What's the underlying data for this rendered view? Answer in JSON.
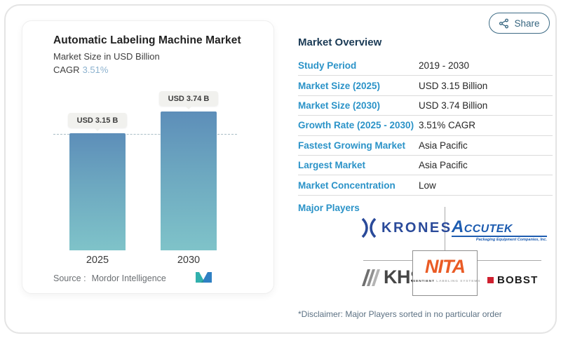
{
  "share": {
    "label": "Share"
  },
  "chart_card": {
    "title": "Automatic Labeling Machine Market",
    "subtitle": "Market Size in USD Billion",
    "cagr_label": "CAGR",
    "cagr_value": "3.51%",
    "source_label": "Source :",
    "source_value": "Mordor Intelligence"
  },
  "chart_data": {
    "type": "bar",
    "title": "Automatic Labeling Machine Market",
    "ylabel": "Market Size in USD Billion",
    "categories": [
      "2025",
      "2030"
    ],
    "values": [
      3.15,
      3.74
    ],
    "bar_labels": [
      "USD 3.15 B",
      "USD 3.74 B"
    ],
    "ylim": [
      0,
      4.2
    ],
    "reference_line": 3.15,
    "grid": "off",
    "legend": "none",
    "colors": {
      "bar_gradient_top": "#5d8eb9",
      "bar_gradient_bottom": "#7fc3c9",
      "cagr_accent": "#8cb2cf",
      "label_blue": "#2b93c8",
      "heading_navy": "#1a3a55"
    }
  },
  "overview": {
    "heading": "Market Overview",
    "rows": [
      {
        "label": "Study Period",
        "value": "2019 - 2030"
      },
      {
        "label": "Market Size (2025)",
        "value": "USD 3.15 Billion"
      },
      {
        "label": "Market Size (2030)",
        "value": "USD 3.74 Billion"
      },
      {
        "label": "Growth Rate (2025 - 2030)",
        "value": "3.51% CAGR"
      },
      {
        "label": "Fastest Growing Market",
        "value": "Asia Pacific"
      },
      {
        "label": "Largest Market",
        "value": "Asia Pacific"
      },
      {
        "label": "Market Concentration",
        "value": "Low"
      }
    ],
    "major_players_label": "Major Players",
    "disclaimer": "*Disclaimer: Major Players sorted in no particular order"
  },
  "logos": {
    "krones": {
      "name": "KRONES"
    },
    "accutek": {
      "name_initial": "A",
      "name_rest": "CCUTEK",
      "tagline": "Packaging Equipment Companies, Inc."
    },
    "khs": {
      "name": "KHS"
    },
    "nita": {
      "name": "NITA",
      "tagline_dark": "SENTIENT",
      "tagline_light": " LABELING SYSTEMS"
    },
    "bobst": {
      "name": "BOBST"
    }
  }
}
